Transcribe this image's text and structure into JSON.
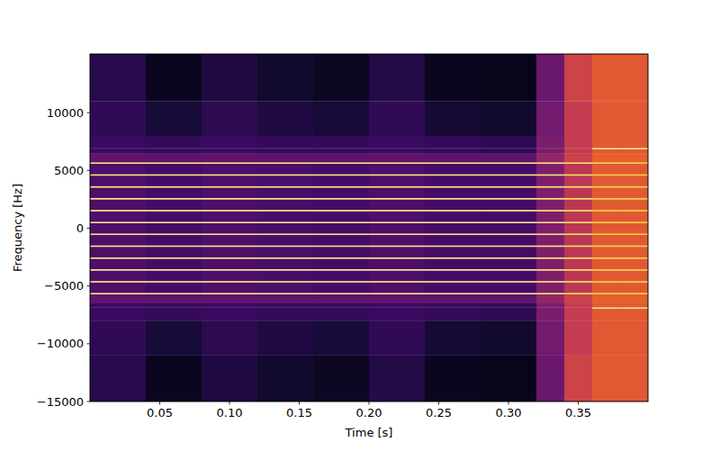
{
  "chart_data": {
    "type": "heatmap",
    "xlabel": "Time [s]",
    "ylabel": "Frequency [Hz]",
    "xlim": [
      0,
      0.4
    ],
    "ylim": [
      -15000,
      15080
    ],
    "xticks": [
      0.05,
      {
        "value": 0.1,
        "label": "0.10"
      },
      0.15,
      {
        "value": 0.2,
        "label": "0.20"
      },
      0.25,
      {
        "value": 0.3,
        "label": "0.30"
      },
      0.35
    ],
    "yticks": [
      {
        "value": -15000,
        "label": "−15000"
      },
      {
        "value": -10000,
        "label": "−10000"
      },
      {
        "value": -5000,
        "label": "−5000"
      },
      0,
      5000,
      10000
    ],
    "zlim": [
      -100,
      0
    ],
    "x_edges": [
      0,
      0.04,
      0.08,
      0.12,
      0.16,
      0.2,
      0.24,
      0.28,
      0.32,
      0.34,
      0.36,
      0.38,
      0.4
    ],
    "y_edges": [
      -15000,
      -11000,
      -8000,
      -6960,
      -6840,
      -6500,
      -5710,
      -5590,
      -4680,
      -4560,
      -3650,
      -3530,
      -2630,
      -2510,
      -1600,
      -1480,
      -570,
      -450,
      450,
      570,
      1480,
      1600,
      2510,
      2630,
      3530,
      3650,
      4560,
      4680,
      5590,
      5710,
      6500,
      6840,
      6960,
      8000,
      11000,
      15080
    ],
    "cells": [
      [
        -86,
        -95,
        -88,
        -92,
        -94,
        -87,
        -95,
        -96,
        -70,
        -45,
        -38,
        -38
      ],
      [
        -84,
        -90,
        -85,
        -88,
        -90,
        -84,
        -91,
        -92,
        -68,
        -48,
        -38,
        -38
      ],
      [
        -82,
        -83,
        -82,
        -83,
        -83,
        -82,
        -83,
        -84,
        -66,
        -48,
        -38,
        -38
      ],
      [
        -82,
        -83,
        -82,
        -83,
        -83,
        -82,
        -83,
        -84,
        -66,
        -48,
        -6,
        -6
      ],
      [
        -82,
        -83,
        -82,
        -83,
        -83,
        -82,
        -83,
        -84,
        -66,
        -48,
        -38,
        -38
      ],
      [
        -72,
        -73,
        -72,
        -73,
        -73,
        -72,
        -73,
        -73,
        -60,
        -46,
        -36,
        -36
      ],
      [
        -5,
        -5,
        -5,
        -5,
        -5,
        -5,
        -5,
        -5,
        -6,
        -8,
        -12,
        -12
      ],
      [
        -77,
        -79,
        -77,
        -78,
        -79,
        -77,
        -79,
        -79,
        -65,
        -50,
        -38,
        -38
      ],
      [
        -5,
        -5,
        -5,
        -5,
        -5,
        -5,
        -5,
        -5,
        -6,
        -8,
        -12,
        -12
      ],
      [
        -77,
        -79,
        -77,
        -78,
        -79,
        -77,
        -79,
        -79,
        -65,
        -50,
        -38,
        -38
      ],
      [
        -5,
        -5,
        -5,
        -5,
        -5,
        -5,
        -5,
        -5,
        -6,
        -8,
        -12,
        -12
      ],
      [
        -77,
        -79,
        -77,
        -78,
        -79,
        -77,
        -79,
        -79,
        -65,
        -50,
        -38,
        -38
      ],
      [
        -5,
        -5,
        -5,
        -5,
        -5,
        -5,
        -5,
        -5,
        -6,
        -8,
        -12,
        -12
      ],
      [
        -77,
        -79,
        -77,
        -78,
        -79,
        -77,
        -79,
        -79,
        -65,
        -50,
        -38,
        -38
      ],
      [
        -5,
        -5,
        -5,
        -5,
        -5,
        -5,
        -5,
        -5,
        -6,
        -8,
        -12,
        -12
      ],
      [
        -77,
        -79,
        -77,
        -78,
        -79,
        -77,
        -79,
        -79,
        -65,
        -50,
        -38,
        -38
      ],
      [
        -5,
        -5,
        -5,
        -5,
        -5,
        -5,
        -5,
        -5,
        -6,
        -8,
        -12,
        -12
      ],
      [
        -77,
        -79,
        -77,
        -78,
        -79,
        -77,
        -79,
        -79,
        -65,
        -50,
        -38,
        -38
      ],
      [
        -5,
        -5,
        -5,
        -5,
        -5,
        -5,
        -5,
        -5,
        -6,
        -8,
        -12,
        -12
      ],
      [
        -77,
        -79,
        -77,
        -78,
        -79,
        -77,
        -79,
        -79,
        -65,
        -50,
        -38,
        -38
      ],
      [
        -5,
        -5,
        -5,
        -5,
        -5,
        -5,
        -5,
        -5,
        -6,
        -8,
        -12,
        -12
      ],
      [
        -77,
        -79,
        -77,
        -78,
        -79,
        -77,
        -79,
        -79,
        -65,
        -50,
        -38,
        -38
      ],
      [
        -5,
        -5,
        -5,
        -5,
        -5,
        -5,
        -5,
        -5,
        -6,
        -8,
        -12,
        -12
      ],
      [
        -77,
        -79,
        -77,
        -78,
        -79,
        -77,
        -79,
        -79,
        -65,
        -50,
        -38,
        -38
      ],
      [
        -5,
        -5,
        -5,
        -5,
        -5,
        -5,
        -5,
        -5,
        -6,
        -8,
        -12,
        -12
      ],
      [
        -77,
        -79,
        -77,
        -78,
        -79,
        -77,
        -79,
        -79,
        -65,
        -50,
        -38,
        -38
      ],
      [
        -5,
        -5,
        -5,
        -5,
        -5,
        -5,
        -5,
        -5,
        -6,
        -8,
        -12,
        -12
      ],
      [
        -77,
        -79,
        -77,
        -78,
        -79,
        -77,
        -79,
        -79,
        -65,
        -50,
        -38,
        -38
      ],
      [
        -5,
        -5,
        -5,
        -5,
        -5,
        -5,
        -5,
        -5,
        -6,
        -8,
        -12,
        -12
      ],
      [
        -72,
        -73,
        -72,
        -73,
        -73,
        -72,
        -73,
        -73,
        -60,
        -46,
        -36,
        -36
      ],
      [
        -82,
        -83,
        -82,
        -83,
        -83,
        -82,
        -83,
        -84,
        -66,
        -48,
        -38,
        -38
      ],
      [
        -82,
        -83,
        -82,
        -83,
        -83,
        -82,
        -83,
        -84,
        -66,
        -48,
        -6,
        -6
      ],
      [
        -82,
        -83,
        -82,
        -83,
        -83,
        -82,
        -83,
        -84,
        -66,
        -48,
        -38,
        -38
      ],
      [
        -84,
        -90,
        -85,
        -88,
        -90,
        -84,
        -91,
        -92,
        -68,
        -48,
        -38,
        -38
      ],
      [
        -86,
        -95,
        -88,
        -92,
        -94,
        -87,
        -95,
        -96,
        -70,
        -45,
        -38,
        -38
      ]
    ]
  }
}
